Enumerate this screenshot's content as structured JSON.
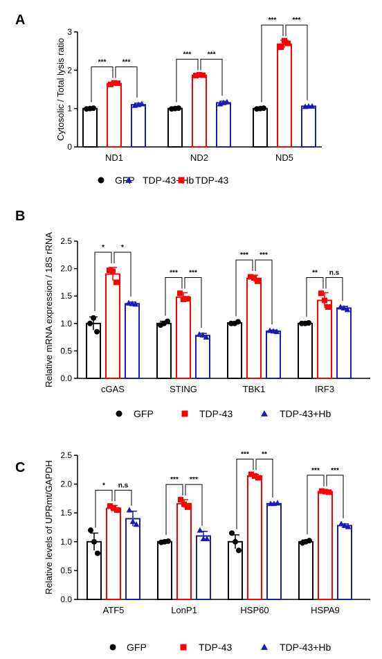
{
  "chart_data": [
    {
      "type": "bar",
      "panel": "A",
      "ylabel": "Cytosolic / Total lysis  ratio",
      "ylim": [
        0,
        3
      ],
      "yticks": [
        0,
        1,
        2,
        3
      ],
      "categories": [
        "ND1",
        "ND2",
        "ND5"
      ],
      "group_order": [
        "GFP",
        "TDP-43",
        "TDP-43+Hb"
      ],
      "series": [
        {
          "name": "GFP",
          "values": [
            1.0,
            1.0,
            1.0
          ],
          "err": [
            0.02,
            0.02,
            0.02
          ],
          "points": [
            [
              0.99,
              1.01,
              1.0
            ],
            [
              0.99,
              1.01,
              1.0
            ],
            [
              0.99,
              1.01,
              1.0
            ]
          ]
        },
        {
          "name": "TDP-43",
          "values": [
            1.65,
            1.87,
            2.68
          ],
          "err": [
            0.04,
            0.02,
            0.1
          ],
          "points": [
            [
              1.63,
              1.66,
              1.67
            ],
            [
              1.86,
              1.87,
              1.88
            ],
            [
              2.6,
              2.7,
              2.77
            ]
          ]
        },
        {
          "name": "TDP-43+Hb",
          "values": [
            1.1,
            1.15,
            1.06
          ],
          "err": [
            0.04,
            0.04,
            0.01
          ],
          "points": [
            [
              1.08,
              1.12,
              1.1
            ],
            [
              1.12,
              1.17,
              1.15
            ],
            [
              1.05,
              1.06,
              1.06
            ]
          ]
        }
      ],
      "significance": [
        [
          "***",
          "***"
        ],
        [
          "***",
          "***"
        ],
        [
          "***",
          "***"
        ]
      ],
      "legend": [
        "GFP",
        "TDP-43+Hb",
        "TDP-43"
      ]
    },
    {
      "type": "bar",
      "panel": "B",
      "ylabel": "Relative mRNA expression / 18S rRNA",
      "ylim": [
        0,
        2.5
      ],
      "yticks": [
        0.0,
        0.5,
        1.0,
        1.5,
        2.0,
        2.5
      ],
      "categories": [
        "cGAS",
        "STING",
        "TBK1",
        "IRF3"
      ],
      "group_order": [
        "GFP",
        "TDP-43",
        "TDP-43+Hb"
      ],
      "series": [
        {
          "name": "GFP",
          "values": [
            1.0,
            1.0,
            1.01,
            1.0
          ],
          "err": [
            0.12,
            0.04,
            0.02,
            0.02
          ],
          "points": [
            [
              1.0,
              0.85,
              1.1
            ],
            [
              0.97,
              1.04,
              1.0
            ],
            [
              1.0,
              1.03,
              1.0
            ],
            [
              1.0,
              1.01,
              1.0
            ]
          ]
        },
        {
          "name": "TDP-43",
          "values": [
            1.9,
            1.48,
            1.82,
            1.42
          ],
          "err": [
            0.12,
            0.08,
            0.06,
            0.14
          ],
          "points": [
            [
              1.97,
              1.75,
              1.95
            ],
            [
              1.55,
              1.45,
              1.44
            ],
            [
              1.85,
              1.77,
              1.83
            ],
            [
              1.55,
              1.3,
              1.42
            ]
          ]
        },
        {
          "name": "TDP-43+Hb",
          "values": [
            1.36,
            0.78,
            0.86,
            1.28
          ],
          "err": [
            0.03,
            0.04,
            0.02,
            0.03
          ],
          "points": [
            [
              1.37,
              1.35,
              1.36
            ],
            [
              0.8,
              0.75,
              0.79
            ],
            [
              0.87,
              0.85,
              0.86
            ],
            [
              1.3,
              1.25,
              1.28
            ]
          ]
        }
      ],
      "significance": [
        [
          "*",
          "*"
        ],
        [
          "***",
          "***"
        ],
        [
          "***",
          "***"
        ],
        [
          "**",
          "n.s"
        ]
      ],
      "legend": [
        "GFP",
        "TDP-43",
        "TDP-43+Hb"
      ]
    },
    {
      "type": "bar",
      "panel": "C",
      "ylabel": "Relative levels of UPRmt/GAPDH",
      "ylim": [
        0,
        2.5
      ],
      "yticks": [
        0.0,
        0.5,
        1.0,
        1.5,
        2.0,
        2.5
      ],
      "categories": [
        "ATF5",
        "LonP1",
        "HSP60",
        "HSPA9"
      ],
      "group_order": [
        "GFP",
        "TDP-43",
        "TDP-43+Hb"
      ],
      "series": [
        {
          "name": "GFP",
          "values": [
            1.0,
            1.0,
            1.0,
            1.0
          ],
          "err": [
            0.15,
            0.02,
            0.12,
            0.03
          ],
          "points": [
            [
              1.2,
              0.8,
              1.0
            ],
            [
              0.99,
              1.01,
              1.0
            ],
            [
              1.15,
              0.85,
              1.0
            ],
            [
              0.98,
              1.02,
              1.0
            ]
          ]
        },
        {
          "name": "TDP-43",
          "values": [
            1.58,
            1.66,
            2.14,
            1.87
          ],
          "err": [
            0.05,
            0.07,
            0.03,
            0.02
          ],
          "points": [
            [
              1.62,
              1.55,
              1.58
            ],
            [
              1.73,
              1.6,
              1.65
            ],
            [
              2.17,
              2.11,
              2.14
            ],
            [
              1.88,
              1.86,
              1.87
            ]
          ]
        },
        {
          "name": "TDP-43+Hb",
          "values": [
            1.4,
            1.1,
            1.66,
            1.28
          ],
          "err": [
            0.13,
            0.08,
            0.01,
            0.03
          ],
          "points": [
            [
              1.55,
              1.3,
              1.35
            ],
            [
              1.2,
              1.05,
              1.05
            ],
            [
              1.66,
              1.67,
              1.66
            ],
            [
              1.31,
              1.26,
              1.28
            ]
          ]
        }
      ],
      "significance": [
        [
          "*",
          "n.s"
        ],
        [
          "***",
          "***"
        ],
        [
          "***",
          "**"
        ],
        [
          "***",
          "***"
        ]
      ],
      "legend": [
        "GFP",
        "TDP-43",
        "TDP-43+Hb"
      ]
    }
  ],
  "colors": {
    "GFP": "#000000",
    "TDP-43": "#ff0000",
    "TDP-43+Hb": "#1a1ab8"
  },
  "markers": {
    "GFP": "circle",
    "TDP-43": "square",
    "TDP-43+Hb": "triangle"
  }
}
